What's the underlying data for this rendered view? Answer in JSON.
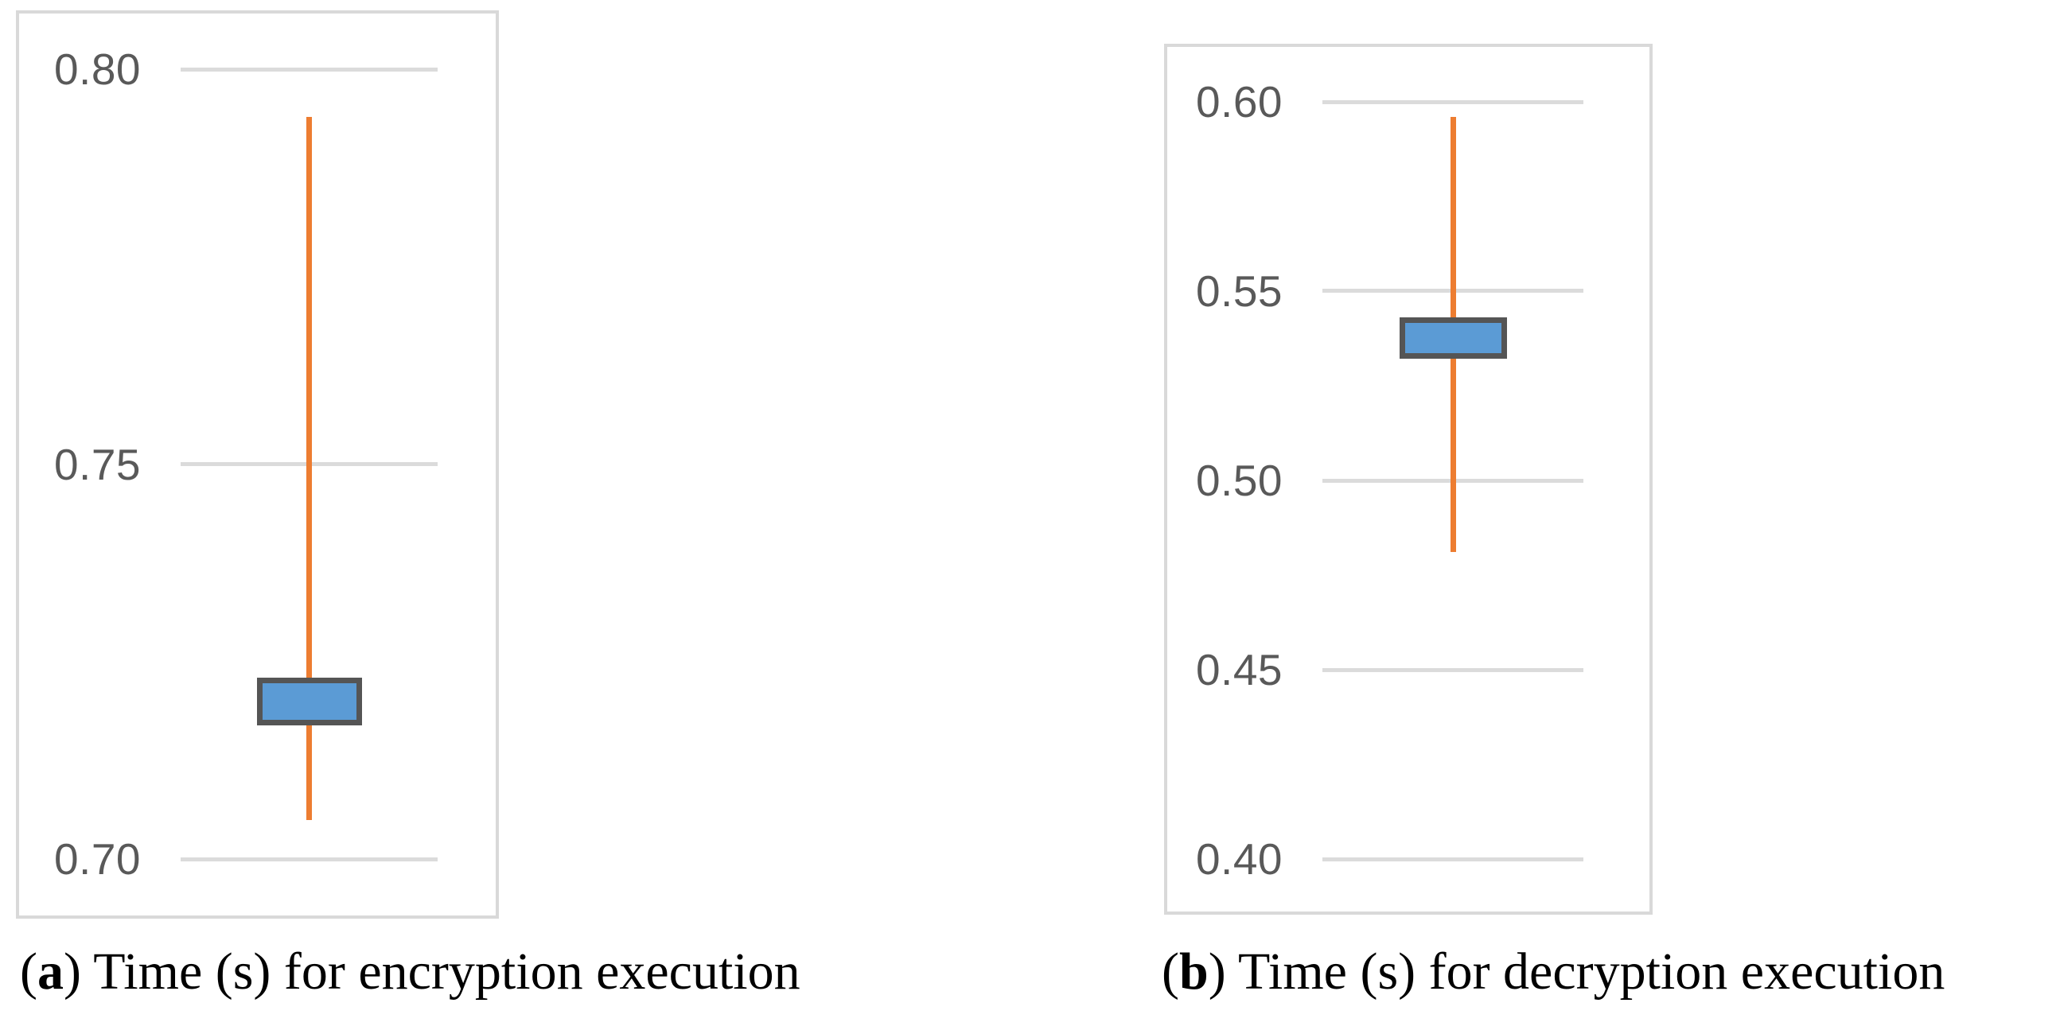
{
  "figure": {
    "captions": {
      "a": {
        "open": "(",
        "letter": "a",
        "close": ")",
        "text": "Time (s) for encryption execution"
      },
      "b": {
        "open": "(",
        "letter": "b",
        "close": ")",
        "text": "Time (s) for decryption execution"
      }
    },
    "colors": {
      "background": "#FFFFFF",
      "panel_border": "#D9D9D9",
      "gridline": "#DBDBDB",
      "tick_label": "#595959",
      "whisker": "#ED7D31",
      "box_fill": "#5B9BD5",
      "box_border": "#555555",
      "caption": "#000000"
    }
  },
  "chart_data": [
    {
      "type": "box_whisker",
      "panel": "a",
      "title": "(a) Time (s) for encryption execution",
      "grid": true,
      "legend": "none",
      "y_axis": {
        "min": 0.7,
        "max": 0.8,
        "tick_step": 0.05,
        "tick_values": [
          0.8,
          0.75,
          0.7
        ],
        "tick_labels": [
          "0.80",
          "0.75",
          "0.70"
        ]
      },
      "values": {
        "high": 0.794,
        "box_top": 0.723,
        "box_bottom": 0.717,
        "low": 0.705
      }
    },
    {
      "type": "box_whisker",
      "panel": "b",
      "title": "(b) Time (s) for decryption execution",
      "grid": true,
      "legend": "none",
      "y_axis": {
        "min": 0.4,
        "max": 0.6,
        "tick_step": 0.05,
        "tick_values": [
          0.6,
          0.55,
          0.5,
          0.45,
          0.4
        ],
        "tick_labels": [
          "0.60",
          "0.55",
          "0.50",
          "0.45",
          "0.40"
        ]
      },
      "values": {
        "high": 0.596,
        "box_top": 0.543,
        "box_bottom": 0.532,
        "low": 0.481
      }
    }
  ]
}
